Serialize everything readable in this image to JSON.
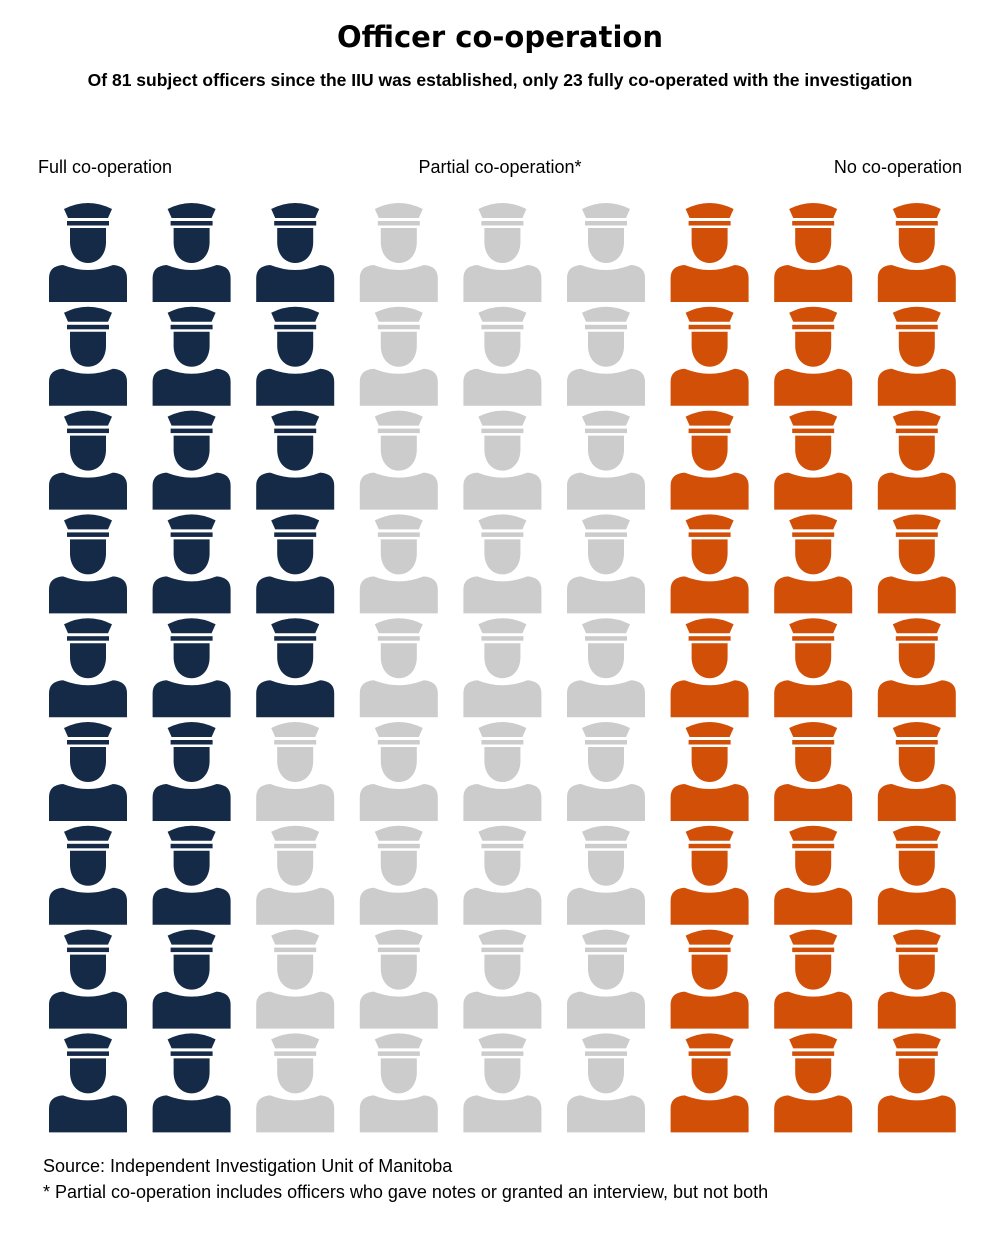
{
  "title": "Officer co-operation",
  "subtitle": "Of 81 subject officers since the IIU was established, only 23 fully co-operated with the investigation",
  "chart_data": {
    "type": "pictogram",
    "total": 81,
    "columns": 9,
    "rows": 9,
    "fill_order": "column-major, left to right",
    "icon": "police-officer-icon",
    "series": [
      {
        "name": "Full co-operation",
        "value": 23,
        "color": "#152a47"
      },
      {
        "name": "Partial co-operation*",
        "value": 31,
        "color": "#cccccc"
      },
      {
        "name": "No co-operation",
        "value": 27,
        "color": "#d24f07"
      }
    ]
  },
  "source": "Source: Independent Investigation Unit of Manitoba",
  "note": "* Partial co-operation includes officers who gave notes or granted an interview, but not both"
}
